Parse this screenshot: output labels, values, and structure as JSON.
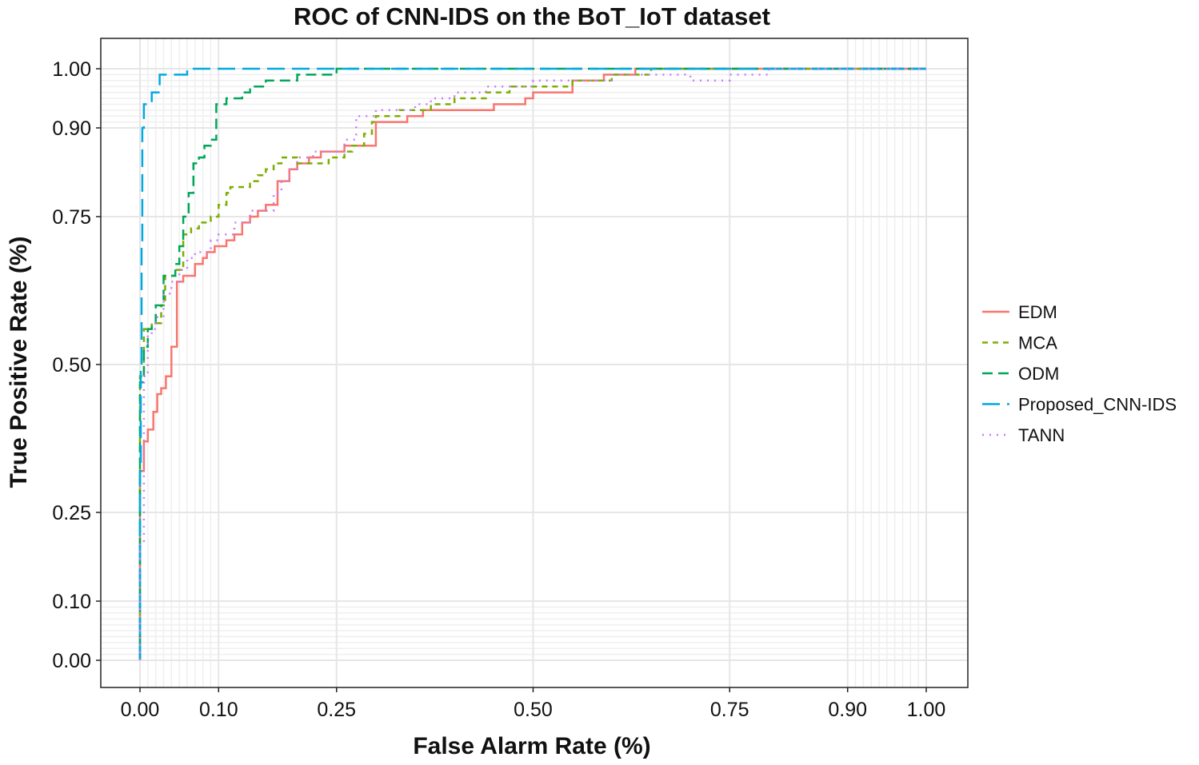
{
  "chart_data": {
    "type": "line",
    "title": "ROC of CNN-IDS on the BoT_IoT dataset",
    "xlabel": "False Alarm Rate (%)",
    "ylabel": "True Positive Rate (%)",
    "xlim": [
      -0.1,
      1.05
    ],
    "ylim": [
      -0.05,
      1.05
    ],
    "x_ticks": [
      0.0,
      0.1,
      0.25,
      0.5,
      0.75,
      0.9,
      1.0
    ],
    "x_tick_labels": [
      "0.00",
      "0.10",
      "0.25",
      "0.50",
      "0.75",
      "0.90",
      "1.00"
    ],
    "y_ticks": [
      0.0,
      0.1,
      0.25,
      0.5,
      0.75,
      0.9,
      1.0
    ],
    "y_tick_labels": [
      "0.00",
      "0.10",
      "0.25",
      "0.50",
      "0.75",
      "0.90",
      "1.00"
    ],
    "grid": true,
    "legend_position": "right",
    "series": [
      {
        "name": "EDM",
        "color": "#f8766d",
        "dash": "solid",
        "points": [
          [
            0,
            0
          ],
          [
            0,
            0.32
          ],
          [
            0.005,
            0.32
          ],
          [
            0.005,
            0.37
          ],
          [
            0.01,
            0.37
          ],
          [
            0.01,
            0.39
          ],
          [
            0.017,
            0.39
          ],
          [
            0.017,
            0.42
          ],
          [
            0.022,
            0.42
          ],
          [
            0.022,
            0.45
          ],
          [
            0.027,
            0.45
          ],
          [
            0.027,
            0.46
          ],
          [
            0.033,
            0.46
          ],
          [
            0.033,
            0.48
          ],
          [
            0.04,
            0.48
          ],
          [
            0.04,
            0.53
          ],
          [
            0.047,
            0.53
          ],
          [
            0.047,
            0.64
          ],
          [
            0.055,
            0.64
          ],
          [
            0.055,
            0.65
          ],
          [
            0.07,
            0.65
          ],
          [
            0.07,
            0.67
          ],
          [
            0.08,
            0.67
          ],
          [
            0.08,
            0.68
          ],
          [
            0.085,
            0.68
          ],
          [
            0.085,
            0.69
          ],
          [
            0.095,
            0.69
          ],
          [
            0.095,
            0.7
          ],
          [
            0.11,
            0.7
          ],
          [
            0.11,
            0.71
          ],
          [
            0.12,
            0.71
          ],
          [
            0.12,
            0.72
          ],
          [
            0.13,
            0.72
          ],
          [
            0.13,
            0.74
          ],
          [
            0.14,
            0.74
          ],
          [
            0.14,
            0.75
          ],
          [
            0.15,
            0.75
          ],
          [
            0.15,
            0.76
          ],
          [
            0.16,
            0.76
          ],
          [
            0.16,
            0.77
          ],
          [
            0.175,
            0.77
          ],
          [
            0.175,
            0.81
          ],
          [
            0.19,
            0.81
          ],
          [
            0.19,
            0.83
          ],
          [
            0.2,
            0.83
          ],
          [
            0.2,
            0.84
          ],
          [
            0.215,
            0.84
          ],
          [
            0.215,
            0.85
          ],
          [
            0.23,
            0.85
          ],
          [
            0.23,
            0.86
          ],
          [
            0.26,
            0.86
          ],
          [
            0.26,
            0.87
          ],
          [
            0.3,
            0.87
          ],
          [
            0.3,
            0.91
          ],
          [
            0.34,
            0.91
          ],
          [
            0.34,
            0.92
          ],
          [
            0.36,
            0.92
          ],
          [
            0.36,
            0.93
          ],
          [
            0.45,
            0.93
          ],
          [
            0.45,
            0.94
          ],
          [
            0.49,
            0.94
          ],
          [
            0.49,
            0.95
          ],
          [
            0.5,
            0.95
          ],
          [
            0.5,
            0.96
          ],
          [
            0.55,
            0.96
          ],
          [
            0.55,
            0.98
          ],
          [
            0.59,
            0.98
          ],
          [
            0.59,
            0.99
          ],
          [
            0.63,
            0.99
          ],
          [
            0.63,
            1.0
          ],
          [
            1.0,
            1.0
          ]
        ]
      },
      {
        "name": "MCA",
        "color": "#7cae00",
        "dash": "short",
        "points": [
          [
            0,
            0
          ],
          [
            0,
            0.48
          ],
          [
            0.005,
            0.48
          ],
          [
            0.005,
            0.56
          ],
          [
            0.015,
            0.56
          ],
          [
            0.015,
            0.57
          ],
          [
            0.027,
            0.57
          ],
          [
            0.027,
            0.6
          ],
          [
            0.032,
            0.6
          ],
          [
            0.032,
            0.65
          ],
          [
            0.045,
            0.65
          ],
          [
            0.045,
            0.66
          ],
          [
            0.055,
            0.66
          ],
          [
            0.055,
            0.72
          ],
          [
            0.065,
            0.72
          ],
          [
            0.065,
            0.73
          ],
          [
            0.075,
            0.73
          ],
          [
            0.075,
            0.74
          ],
          [
            0.09,
            0.74
          ],
          [
            0.09,
            0.75
          ],
          [
            0.1,
            0.75
          ],
          [
            0.1,
            0.77
          ],
          [
            0.11,
            0.77
          ],
          [
            0.11,
            0.79
          ],
          [
            0.115,
            0.79
          ],
          [
            0.115,
            0.8
          ],
          [
            0.14,
            0.8
          ],
          [
            0.14,
            0.81
          ],
          [
            0.15,
            0.81
          ],
          [
            0.15,
            0.82
          ],
          [
            0.16,
            0.82
          ],
          [
            0.16,
            0.83
          ],
          [
            0.17,
            0.83
          ],
          [
            0.17,
            0.84
          ],
          [
            0.18,
            0.84
          ],
          [
            0.18,
            0.85
          ],
          [
            0.2,
            0.85
          ],
          [
            0.2,
            0.84
          ],
          [
            0.24,
            0.84
          ],
          [
            0.24,
            0.85
          ],
          [
            0.26,
            0.85
          ],
          [
            0.26,
            0.86
          ],
          [
            0.27,
            0.86
          ],
          [
            0.27,
            0.87
          ],
          [
            0.285,
            0.87
          ],
          [
            0.285,
            0.89
          ],
          [
            0.295,
            0.89
          ],
          [
            0.295,
            0.91
          ],
          [
            0.3,
            0.91
          ],
          [
            0.3,
            0.92
          ],
          [
            0.33,
            0.92
          ],
          [
            0.33,
            0.93
          ],
          [
            0.37,
            0.93
          ],
          [
            0.37,
            0.94
          ],
          [
            0.4,
            0.94
          ],
          [
            0.4,
            0.95
          ],
          [
            0.44,
            0.95
          ],
          [
            0.44,
            0.96
          ],
          [
            0.47,
            0.96
          ],
          [
            0.47,
            0.97
          ],
          [
            0.55,
            0.97
          ],
          [
            0.55,
            0.98
          ],
          [
            0.6,
            0.98
          ],
          [
            0.6,
            0.99
          ],
          [
            0.65,
            0.99
          ],
          [
            0.65,
            1.0
          ],
          [
            1.0,
            1.0
          ]
        ]
      },
      {
        "name": "ODM",
        "color": "#00a65a",
        "dash": "medium",
        "points": [
          [
            0,
            0
          ],
          [
            0,
            0.47
          ],
          [
            0.005,
            0.47
          ],
          [
            0.005,
            0.53
          ],
          [
            0.01,
            0.53
          ],
          [
            0.01,
            0.56
          ],
          [
            0.015,
            0.56
          ],
          [
            0.015,
            0.57
          ],
          [
            0.02,
            0.57
          ],
          [
            0.02,
            0.6
          ],
          [
            0.03,
            0.6
          ],
          [
            0.03,
            0.65
          ],
          [
            0.045,
            0.65
          ],
          [
            0.045,
            0.67
          ],
          [
            0.05,
            0.67
          ],
          [
            0.05,
            0.7
          ],
          [
            0.055,
            0.7
          ],
          [
            0.055,
            0.75
          ],
          [
            0.062,
            0.75
          ],
          [
            0.062,
            0.79
          ],
          [
            0.068,
            0.79
          ],
          [
            0.068,
            0.84
          ],
          [
            0.075,
            0.84
          ],
          [
            0.075,
            0.85
          ],
          [
            0.082,
            0.85
          ],
          [
            0.082,
            0.87
          ],
          [
            0.09,
            0.87
          ],
          [
            0.09,
            0.88
          ],
          [
            0.097,
            0.88
          ],
          [
            0.097,
            0.94
          ],
          [
            0.11,
            0.94
          ],
          [
            0.11,
            0.95
          ],
          [
            0.13,
            0.95
          ],
          [
            0.13,
            0.96
          ],
          [
            0.14,
            0.96
          ],
          [
            0.14,
            0.97
          ],
          [
            0.16,
            0.97
          ],
          [
            0.16,
            0.98
          ],
          [
            0.2,
            0.98
          ],
          [
            0.2,
            0.99
          ],
          [
            0.25,
            0.99
          ],
          [
            0.25,
            1.0
          ],
          [
            1.0,
            1.0
          ]
        ]
      },
      {
        "name": "Proposed_CNN-IDS",
        "color": "#00a9e0",
        "dash": "long",
        "points": [
          [
            0,
            0
          ],
          [
            0,
            0.32
          ],
          [
            0.001,
            0.32
          ],
          [
            0.001,
            0.5
          ],
          [
            0.002,
            0.5
          ],
          [
            0.002,
            0.7
          ],
          [
            0.003,
            0.7
          ],
          [
            0.003,
            0.9
          ],
          [
            0.005,
            0.9
          ],
          [
            0.005,
            0.94
          ],
          [
            0.015,
            0.94
          ],
          [
            0.015,
            0.96
          ],
          [
            0.025,
            0.96
          ],
          [
            0.025,
            0.99
          ],
          [
            0.06,
            0.99
          ],
          [
            0.06,
            1.0
          ],
          [
            1.0,
            1.0
          ]
        ]
      },
      {
        "name": "TANN",
        "color": "#c77cff",
        "dash": "dotted",
        "points": [
          [
            0,
            0
          ],
          [
            0,
            0.2
          ],
          [
            0.005,
            0.2
          ],
          [
            0.005,
            0.48
          ],
          [
            0.01,
            0.48
          ],
          [
            0.01,
            0.55
          ],
          [
            0.015,
            0.55
          ],
          [
            0.015,
            0.56
          ],
          [
            0.02,
            0.56
          ],
          [
            0.02,
            0.58
          ],
          [
            0.03,
            0.58
          ],
          [
            0.03,
            0.62
          ],
          [
            0.04,
            0.62
          ],
          [
            0.04,
            0.64
          ],
          [
            0.05,
            0.64
          ],
          [
            0.05,
            0.66
          ],
          [
            0.06,
            0.66
          ],
          [
            0.06,
            0.68
          ],
          [
            0.07,
            0.68
          ],
          [
            0.07,
            0.69
          ],
          [
            0.09,
            0.69
          ],
          [
            0.09,
            0.71
          ],
          [
            0.1,
            0.71
          ],
          [
            0.1,
            0.72
          ],
          [
            0.12,
            0.72
          ],
          [
            0.12,
            0.74
          ],
          [
            0.14,
            0.74
          ],
          [
            0.14,
            0.76
          ],
          [
            0.17,
            0.76
          ],
          [
            0.17,
            0.79
          ],
          [
            0.18,
            0.79
          ],
          [
            0.18,
            0.81
          ],
          [
            0.19,
            0.81
          ],
          [
            0.19,
            0.83
          ],
          [
            0.2,
            0.83
          ],
          [
            0.2,
            0.85
          ],
          [
            0.22,
            0.85
          ],
          [
            0.22,
            0.86
          ],
          [
            0.26,
            0.86
          ],
          [
            0.26,
            0.88
          ],
          [
            0.275,
            0.88
          ],
          [
            0.275,
            0.92
          ],
          [
            0.3,
            0.92
          ],
          [
            0.3,
            0.93
          ],
          [
            0.35,
            0.93
          ],
          [
            0.35,
            0.94
          ],
          [
            0.37,
            0.94
          ],
          [
            0.37,
            0.95
          ],
          [
            0.4,
            0.95
          ],
          [
            0.4,
            0.96
          ],
          [
            0.44,
            0.96
          ],
          [
            0.44,
            0.97
          ],
          [
            0.5,
            0.97
          ],
          [
            0.5,
            0.98
          ],
          [
            0.6,
            0.98
          ],
          [
            0.6,
            0.99
          ],
          [
            0.7,
            0.99
          ],
          [
            0.7,
            0.98
          ],
          [
            0.75,
            0.98
          ],
          [
            0.75,
            0.99
          ],
          [
            0.8,
            0.99
          ],
          [
            0.8,
            1.0
          ],
          [
            1.0,
            1.0
          ]
        ]
      }
    ]
  }
}
